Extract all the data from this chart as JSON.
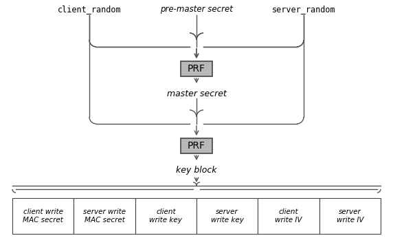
{
  "bg_color": "#ffffff",
  "text_color": "#000000",
  "gray_box_color": "#b8b8b8",
  "gray_box_edge": "#444444",
  "line_color": "#555555",
  "prf_label": "PRF",
  "master_secret_label": "master secret",
  "key_block_label": "key block",
  "bottom_cells": [
    "client write\nMAC secret",
    "server write\nMAC secret",
    "client\nwrite key",
    "server\nwrite key",
    "client\nwrite IV",
    "server\nwrite IV"
  ],
  "fig_width": 5.72,
  "fig_height": 3.62,
  "dpi": 100
}
